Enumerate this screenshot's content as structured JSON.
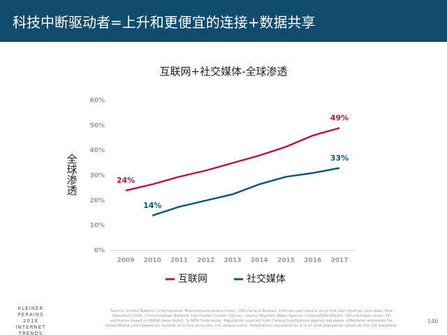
{
  "header": {
    "title": "科技中断驱动者=上升和更便宜的连接+数据共享"
  },
  "chart_data": {
    "type": "line",
    "title": "互联网+社交媒体-全球渗透",
    "y_label": "全球渗透",
    "x": [
      2009,
      2010,
      2011,
      2012,
      2013,
      2014,
      2015,
      2016,
      2017
    ],
    "xlim": [
      2009,
      2017
    ],
    "xticks": [
      2009,
      2010,
      2011,
      2012,
      2013,
      2014,
      2015,
      2016,
      2017
    ],
    "ylim": [
      0,
      60
    ],
    "yticks": [
      {
        "value": 0,
        "label": "0%"
      },
      {
        "value": 10,
        "label": "10%"
      },
      {
        "value": 20,
        "label": "20%"
      },
      {
        "value": 30,
        "label": "30%"
      },
      {
        "value": 40,
        "label": "40%"
      },
      {
        "value": 50,
        "label": "50%"
      },
      {
        "value": 60,
        "label": "60%"
      }
    ],
    "grid": false,
    "legend": "bottom",
    "series": [
      {
        "name": "互联网",
        "color": "#b5174f",
        "values": [
          24,
          26.5,
          29.5,
          32,
          35,
          38,
          41.5,
          46,
          49
        ],
        "value_labels": [
          "24%",
          null,
          null,
          null,
          null,
          null,
          null,
          null,
          "49%"
        ]
      },
      {
        "name": "社交媒体",
        "color": "#0e5779",
        "values": [
          null,
          14,
          17.5,
          20,
          22.5,
          26.5,
          29.5,
          31,
          33
        ],
        "value_labels": [
          null,
          "14%",
          null,
          null,
          null,
          null,
          null,
          null,
          "33%"
        ]
      }
    ]
  },
  "footer": {
    "brand": [
      "KLEINER PERKINS",
      "2018",
      "INTERNET TRENDS"
    ],
    "source": "Source: United Nations / International Telecommunications Union, USA Census Bureau. Internet user data is as of mid-year Internet user data: Pew Research (USA), China Internet Network Information Center (China), Islamic Republic News Agency / InternetWorldStats / KP estimates (Iran), KP estimates based on IAMAI data (India), & APJII (Indonesia). Population sourced from Central Intelligence Agency database. eMarketer estimates for Social Media users based on number of active accounts, not unique users. Penetration calculated as a % of total population based on the CIA database.",
    "page": "146"
  }
}
